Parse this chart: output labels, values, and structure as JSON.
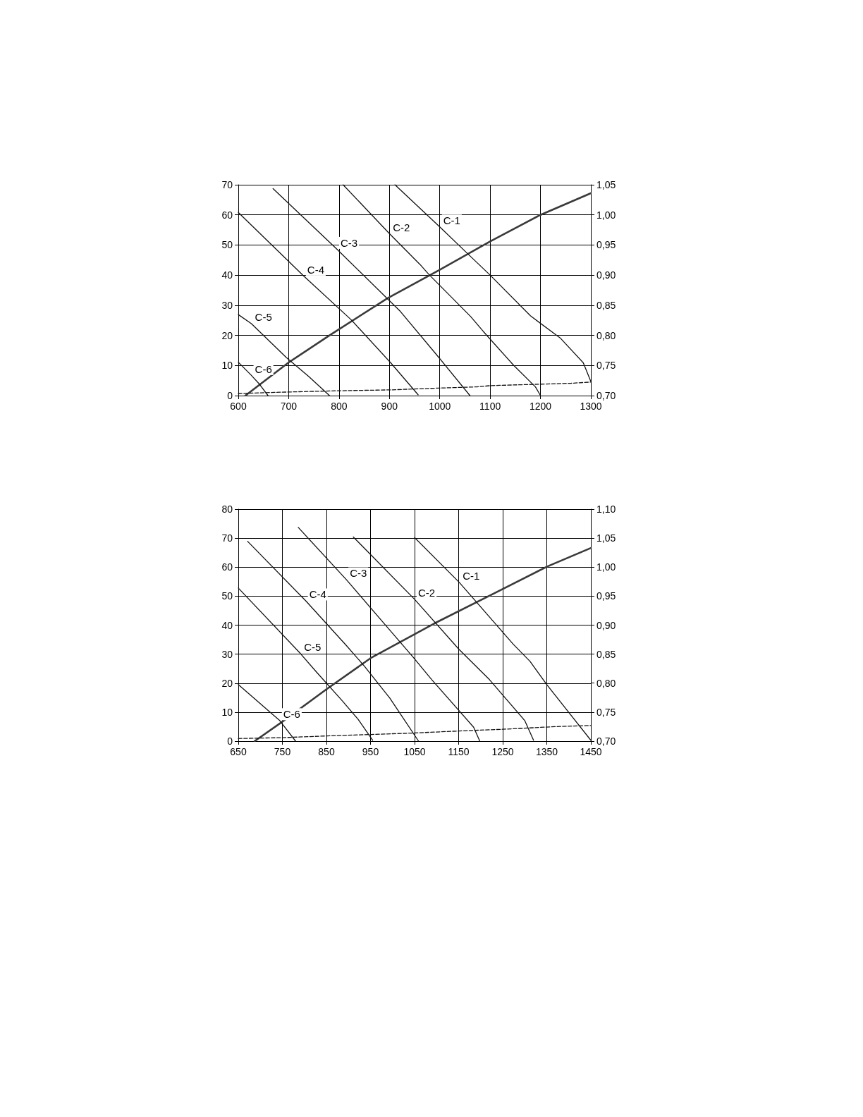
{
  "chart_data": [
    {
      "type": "line",
      "xlim": [
        600,
        1300
      ],
      "xticks": [
        600,
        700,
        800,
        900,
        1000,
        1100,
        1200,
        1300
      ],
      "ylim": [
        0,
        70
      ],
      "yticks": [
        0,
        10,
        20,
        30,
        40,
        50,
        60,
        70
      ],
      "y2lim": [
        0.7,
        1.05
      ],
      "y2ticks": [
        {
          "value": 0.7,
          "label": "0,70"
        },
        {
          "value": 0.75,
          "label": "0,75"
        },
        {
          "value": 0.8,
          "label": "0,80"
        },
        {
          "value": 0.85,
          "label": "0,85"
        },
        {
          "value": 0.9,
          "label": "0,90"
        },
        {
          "value": 0.95,
          "label": "0,95"
        },
        {
          "value": 1.0,
          "label": "1,00"
        },
        {
          "value": 1.05,
          "label": "1,05"
        }
      ],
      "grid": true,
      "legend": false,
      "marker": "none",
      "series": [
        {
          "name": "C-1",
          "color": "#111111",
          "x": [
            911,
            1000,
            1053,
            1100,
            1180,
            1240,
            1285,
            1300
          ],
          "values": [
            70,
            56,
            47.5,
            40,
            26.5,
            19,
            10.9,
            4.7
          ]
        },
        {
          "name": "C-2",
          "color": "#111111",
          "x": [
            808,
            900,
            961,
            978,
            1061,
            1087,
            1147,
            1190,
            1200
          ],
          "values": [
            70,
            53.8,
            43.5,
            40.3,
            26.3,
            21.2,
            10,
            2.9,
            0
          ]
        },
        {
          "name": "C-3",
          "color": "#111111",
          "x": [
            669,
            796,
            922,
            998,
            1060
          ],
          "values": [
            68.7,
            48.6,
            27.9,
            12.7,
            0
          ]
        },
        {
          "name": "C-4",
          "color": "#111111",
          "x": [
            600,
            730,
            824,
            902,
            957
          ],
          "values": [
            60.8,
            39.7,
            25.2,
            11,
            0.3
          ]
        },
        {
          "name": "C-5",
          "color": "#111111",
          "x": [
            600,
            626,
            695,
            740,
            781
          ],
          "values": [
            26.9,
            23.9,
            12.7,
            6.3,
            0
          ]
        },
        {
          "name": "C-6",
          "color": "#111111",
          "x": [
            600,
            626,
            642,
            659
          ],
          "values": [
            11.1,
            6.7,
            3.8,
            0
          ]
        },
        {
          "color": "#3a3a3a",
          "axis": "y2",
          "x": [
            614,
            700,
            781,
            897,
            998,
            1100,
            1200,
            1300
          ],
          "values": [
            0.7,
            0.755,
            0.8,
            0.862,
            0.908,
            0.956,
            1.0,
            1.036
          ]
        },
        {
          "color": "#111111",
          "line_style": "dashed",
          "x": [
            600,
            700,
            796,
            902,
            998,
            1074,
            1100,
            1200,
            1261,
            1300
          ],
          "values": [
            0.7,
            1.2,
            1.6,
            1.9,
            2.5,
            2.9,
            3.3,
            3.8,
            4.1,
            4.5
          ]
        }
      ]
    },
    {
      "type": "line",
      "xlim": [
        650,
        1450
      ],
      "xticks": [
        650,
        750,
        850,
        950,
        1050,
        1150,
        1250,
        1350,
        1450
      ],
      "ylim": [
        0,
        80
      ],
      "yticks": [
        0,
        10,
        20,
        30,
        40,
        50,
        60,
        70,
        80
      ],
      "y2lim": [
        0.7,
        1.1
      ],
      "y2ticks": [
        {
          "value": 0.7,
          "label": "0,70"
        },
        {
          "value": 0.75,
          "label": "0,75"
        },
        {
          "value": 0.8,
          "label": "0,80"
        },
        {
          "value": 0.85,
          "label": "0,85"
        },
        {
          "value": 0.9,
          "label": "0,90"
        },
        {
          "value": 0.95,
          "label": "0,95"
        },
        {
          "value": 1.0,
          "label": "1,00"
        },
        {
          "value": 1.05,
          "label": "1,05"
        },
        {
          "value": 1.1,
          "label": "1,10"
        }
      ],
      "grid": true,
      "legend": false,
      "marker": "none",
      "series": [
        {
          "name": "C-1",
          "color": "#111111",
          "x": [
            1050,
            1151,
            1193,
            1274,
            1312,
            1351,
            1450
          ],
          "values": [
            70.2,
            54.8,
            47.5,
            33.4,
            27.5,
            19.3,
            0.3
          ]
        },
        {
          "name": "C-2",
          "color": "#111111",
          "x": [
            911,
            1050,
            1151,
            1220,
            1300,
            1320
          ],
          "values": [
            70.4,
            48.9,
            31.6,
            21.2,
            7.1,
            0.3
          ]
        },
        {
          "name": "C-3",
          "color": "#111111",
          "x": [
            786,
            895,
            988,
            1047,
            1089,
            1184,
            1198
          ],
          "values": [
            73.7,
            55.7,
            39.3,
            28.9,
            21.2,
            4.8,
            0
          ]
        },
        {
          "name": "C-4",
          "color": "#111111",
          "x": [
            671,
            803,
            895,
            937,
            994,
            1059
          ],
          "values": [
            68.9,
            48.4,
            33,
            25.7,
            14.8,
            0
          ]
        },
        {
          "name": "C-5",
          "color": "#111111",
          "x": [
            650,
            791,
            827,
            886,
            922,
            955
          ],
          "values": [
            52.8,
            30.2,
            23.9,
            13.9,
            7.5,
            0.3
          ]
        },
        {
          "name": "C-6",
          "color": "#111111",
          "x": [
            650,
            744,
            780
          ],
          "values": [
            19.5,
            7.1,
            0
          ]
        },
        {
          "color": "#3a3a3a",
          "axis": "y2",
          "x": [
            687,
            749,
            851,
            952,
            1095,
            1226,
            1351,
            1450
          ],
          "values": [
            0.7,
            0.733,
            0.79,
            0.844,
            0.903,
            0.953,
            1.001,
            1.033
          ]
        },
        {
          "color": "#111111",
          "line_style": "dashed",
          "x": [
            650,
            749,
            851,
            952,
            1047,
            1151,
            1250,
            1369,
            1450
          ],
          "values": [
            0.9,
            1.2,
            1.8,
            2.3,
            2.8,
            3.5,
            4.1,
            5,
            5.4
          ]
        }
      ]
    }
  ]
}
